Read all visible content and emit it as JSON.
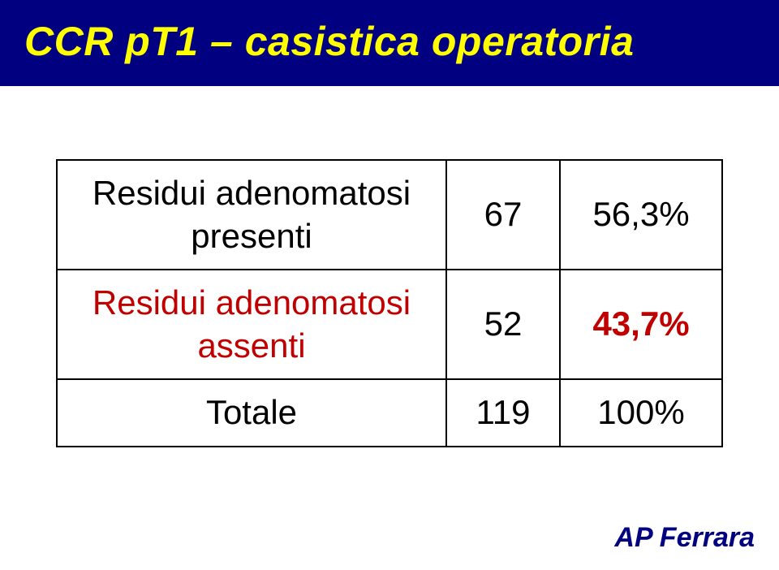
{
  "title": "CCR pT1 – casistica operatoria",
  "table": {
    "rows": [
      {
        "label_line1": "Residui adenomatosi",
        "label_line2": "presenti",
        "count": "67",
        "pct": "56,3%",
        "highlight": false
      },
      {
        "label_line1": "Residui adenomatosi",
        "label_line2": "assenti",
        "count": "52",
        "pct": "43,7%",
        "highlight": true
      },
      {
        "label_line1": "Totale",
        "label_line2": "",
        "count": "119",
        "pct": "100%",
        "highlight": false
      }
    ],
    "colors": {
      "title_bg": "#000080",
      "title_fg": "#ffff00",
      "border": "#000000",
      "text": "#000000",
      "highlight": "#c00000",
      "footer": "#000080"
    },
    "font_sizes": {
      "title": 50,
      "cell": 42,
      "footer": 34
    }
  },
  "footer": "AP Ferrara"
}
